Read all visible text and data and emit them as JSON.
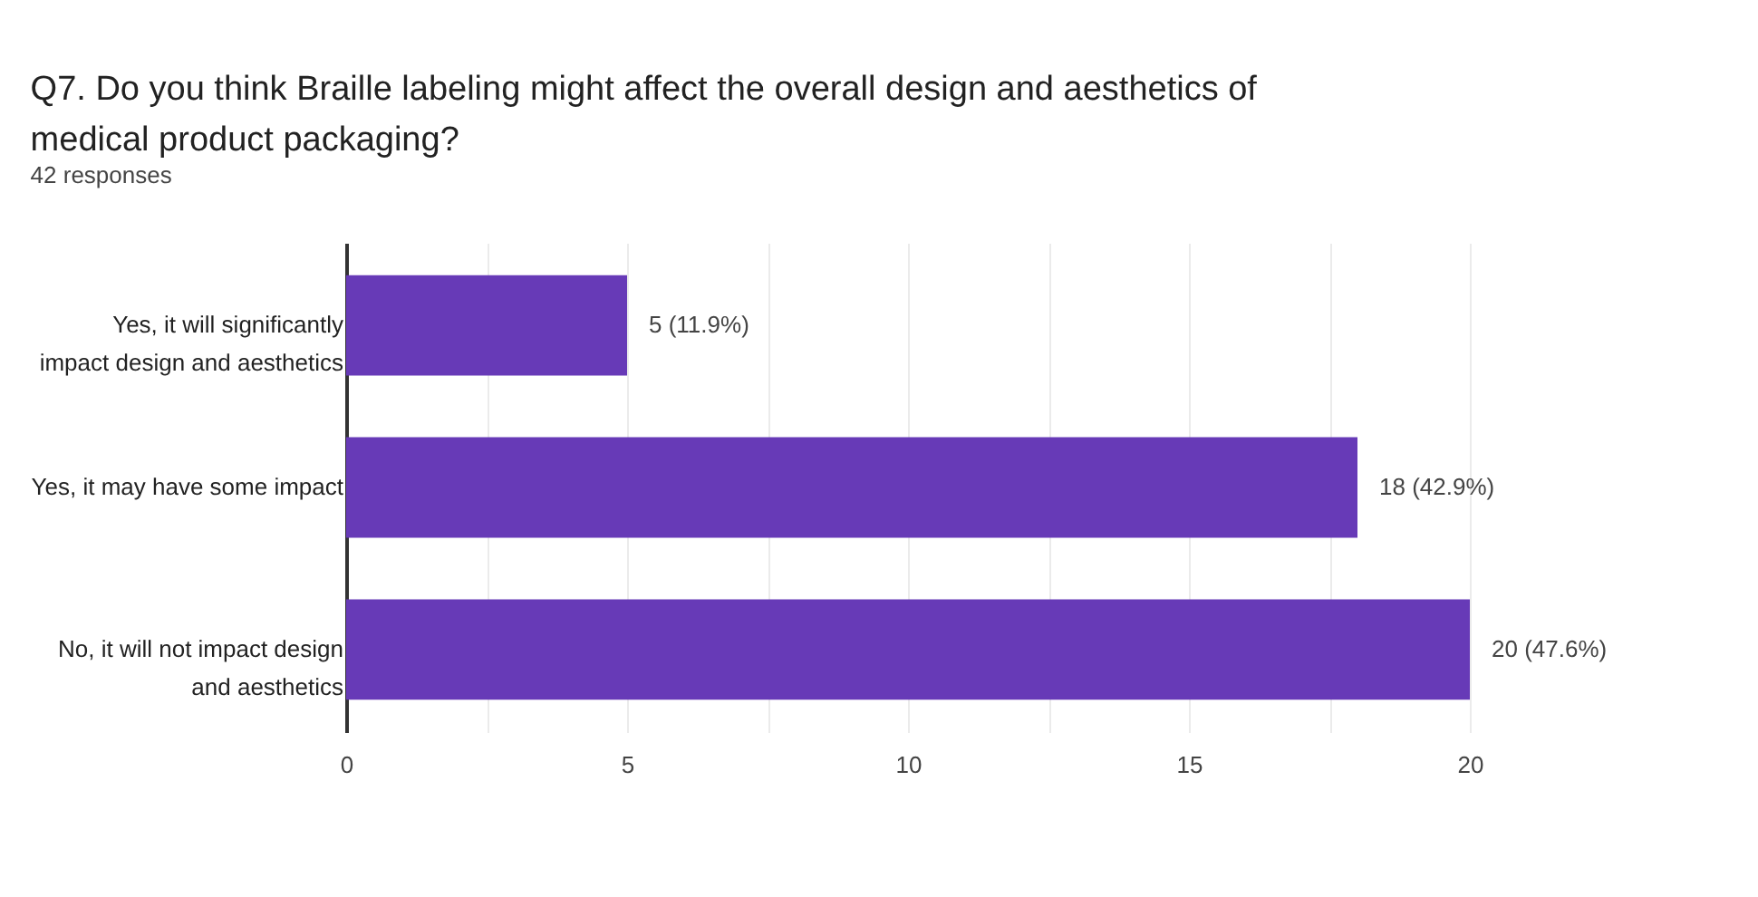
{
  "chart_data": {
    "type": "bar",
    "orientation": "horizontal",
    "title": "Q7. Do you think Braille labeling might affect the overall design and aesthetics of medical product packaging?",
    "subtitle": "42 responses",
    "categories": [
      "Yes, it will significantly impact design and aesthetics",
      "Yes, it may have some impact",
      "No, it will not impact design and aesthetics"
    ],
    "values": [
      5,
      18,
      20
    ],
    "color": "#673ab7",
    "value_labels": [
      "5 (11.9%)",
      "18 (42.9%)",
      "20 (47.6%)"
    ],
    "xlim": [
      0,
      20
    ],
    "xticks": [
      0,
      {
        "value": 2.5,
        "label": null
      },
      5,
      {
        "value": 7.5,
        "label": null
      },
      10,
      {
        "value": 12.5,
        "label": null
      },
      15,
      {
        "value": 17.5,
        "label": null
      },
      20
    ],
    "grid": true
  }
}
